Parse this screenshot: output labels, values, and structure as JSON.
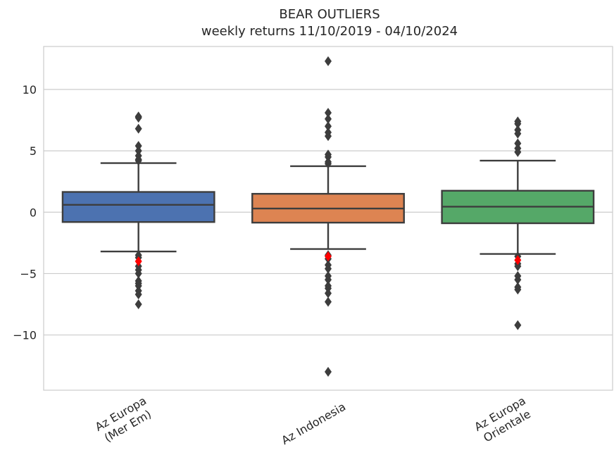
{
  "chart_data": {
    "type": "box",
    "title": "BEAR OUTLIERS",
    "subtitle": "weekly returns 11/10/2019 - 04/10/2024",
    "xlabel": "",
    "ylabel": "",
    "ylim": [
      -14.5,
      13.5
    ],
    "yticks": [
      10,
      5,
      0,
      -5,
      -10
    ],
    "ytick_labels": [
      "10",
      "5",
      "0",
      "−5",
      "−10"
    ],
    "grid": "horizontal",
    "categories": [
      {
        "label": [
          "Az Europa",
          "(Mer Em)"
        ],
        "color": "#4c72b0"
      },
      {
        "label": [
          "Az Indonesia"
        ],
        "color": "#dd8452"
      },
      {
        "label": [
          "Az Europa",
          "Orientale"
        ],
        "color": "#55a868"
      }
    ],
    "boxes": [
      {
        "whisker_low": -3.2,
        "q1": -0.8,
        "median": 0.6,
        "q3": 1.65,
        "whisker_high": 4.0,
        "outliers": [
          7.8,
          7.7,
          6.8,
          5.4,
          5.0,
          4.6,
          4.3,
          4.2,
          -3.5,
          -3.7,
          -4.4,
          -4.7,
          -5.0,
          -5.6,
          -5.8,
          -6.0,
          -6.4,
          -6.7,
          -7.5
        ],
        "bear_outliers": [
          -4.0
        ]
      },
      {
        "whisker_low": -3.0,
        "q1": -0.85,
        "median": 0.3,
        "q3": 1.5,
        "whisker_high": 3.75,
        "outliers": [
          12.3,
          8.1,
          7.6,
          7.0,
          6.5,
          6.2,
          4.7,
          4.5,
          4.1,
          3.95,
          -3.5,
          -3.8,
          -4.3,
          -4.6,
          -5.2,
          -5.5,
          -6.0,
          -6.2,
          -6.6,
          -7.3,
          -13.0
        ],
        "bear_outliers": [
          -3.6
        ]
      },
      {
        "whisker_low": -3.4,
        "q1": -0.9,
        "median": 0.45,
        "q3": 1.75,
        "whisker_high": 4.2,
        "outliers": [
          7.4,
          7.2,
          6.7,
          6.4,
          5.6,
          5.2,
          4.9,
          -3.6,
          -4.2,
          -4.4,
          -5.2,
          -5.5,
          -6.1,
          -6.3,
          -9.2
        ],
        "bear_outliers": [
          -3.9
        ]
      }
    ],
    "colors": {
      "outlier": "#3d3d3d",
      "bear_outlier": "#ff0000",
      "line": "#3d3d3d",
      "grid": "#cccccc",
      "frame": "#cccccc"
    }
  }
}
